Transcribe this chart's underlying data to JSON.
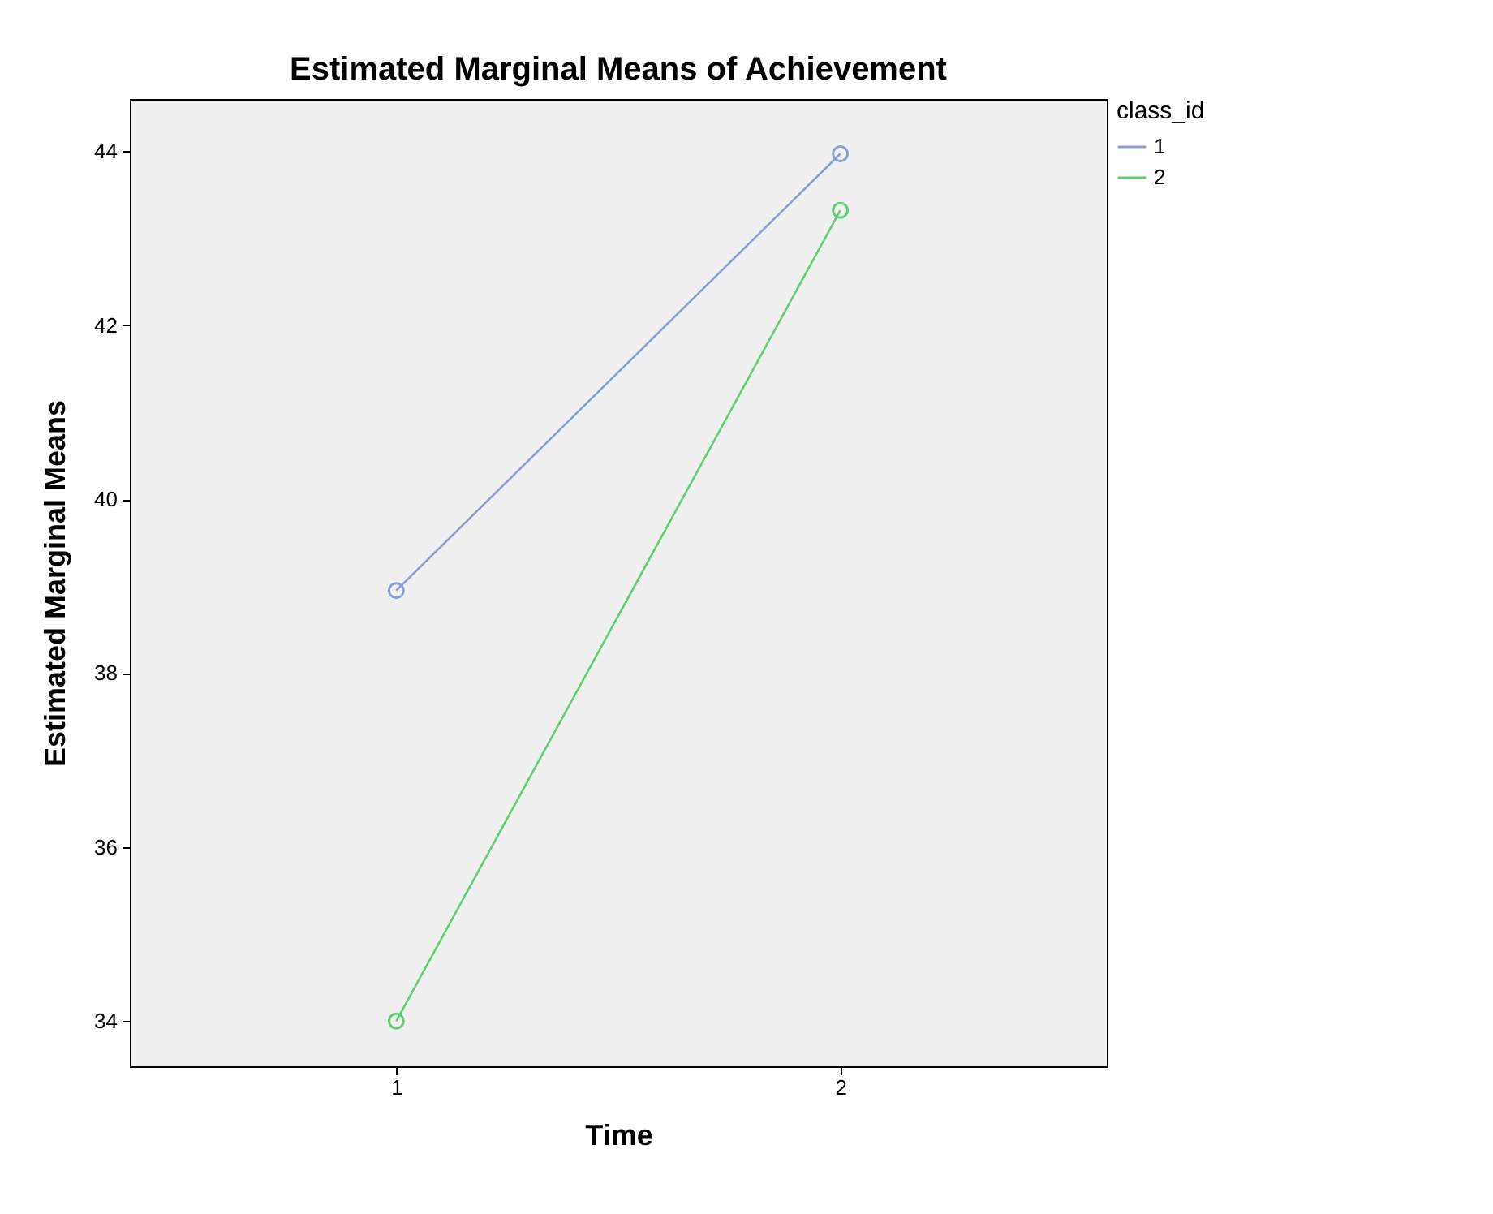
{
  "chart_data": {
    "type": "line",
    "title": "Estimated Marginal Means of Achievement",
    "xlabel": "Time",
    "ylabel": "Estimated Marginal Means",
    "legend_title": "class_id",
    "categories": [
      "1",
      "2"
    ],
    "series": [
      {
        "name": "1",
        "color": "#8c9ed6",
        "values": [
          38.95,
          43.97
        ]
      },
      {
        "name": "2",
        "color": "#5fcf6f",
        "values": [
          34.0,
          43.32
        ]
      }
    ],
    "ylim": [
      33.48,
      44.6
    ],
    "yticks": [
      34,
      36,
      38,
      40,
      42,
      44
    ],
    "grid": false,
    "legend": "top right",
    "marker": "circle",
    "line_style": "solid"
  }
}
